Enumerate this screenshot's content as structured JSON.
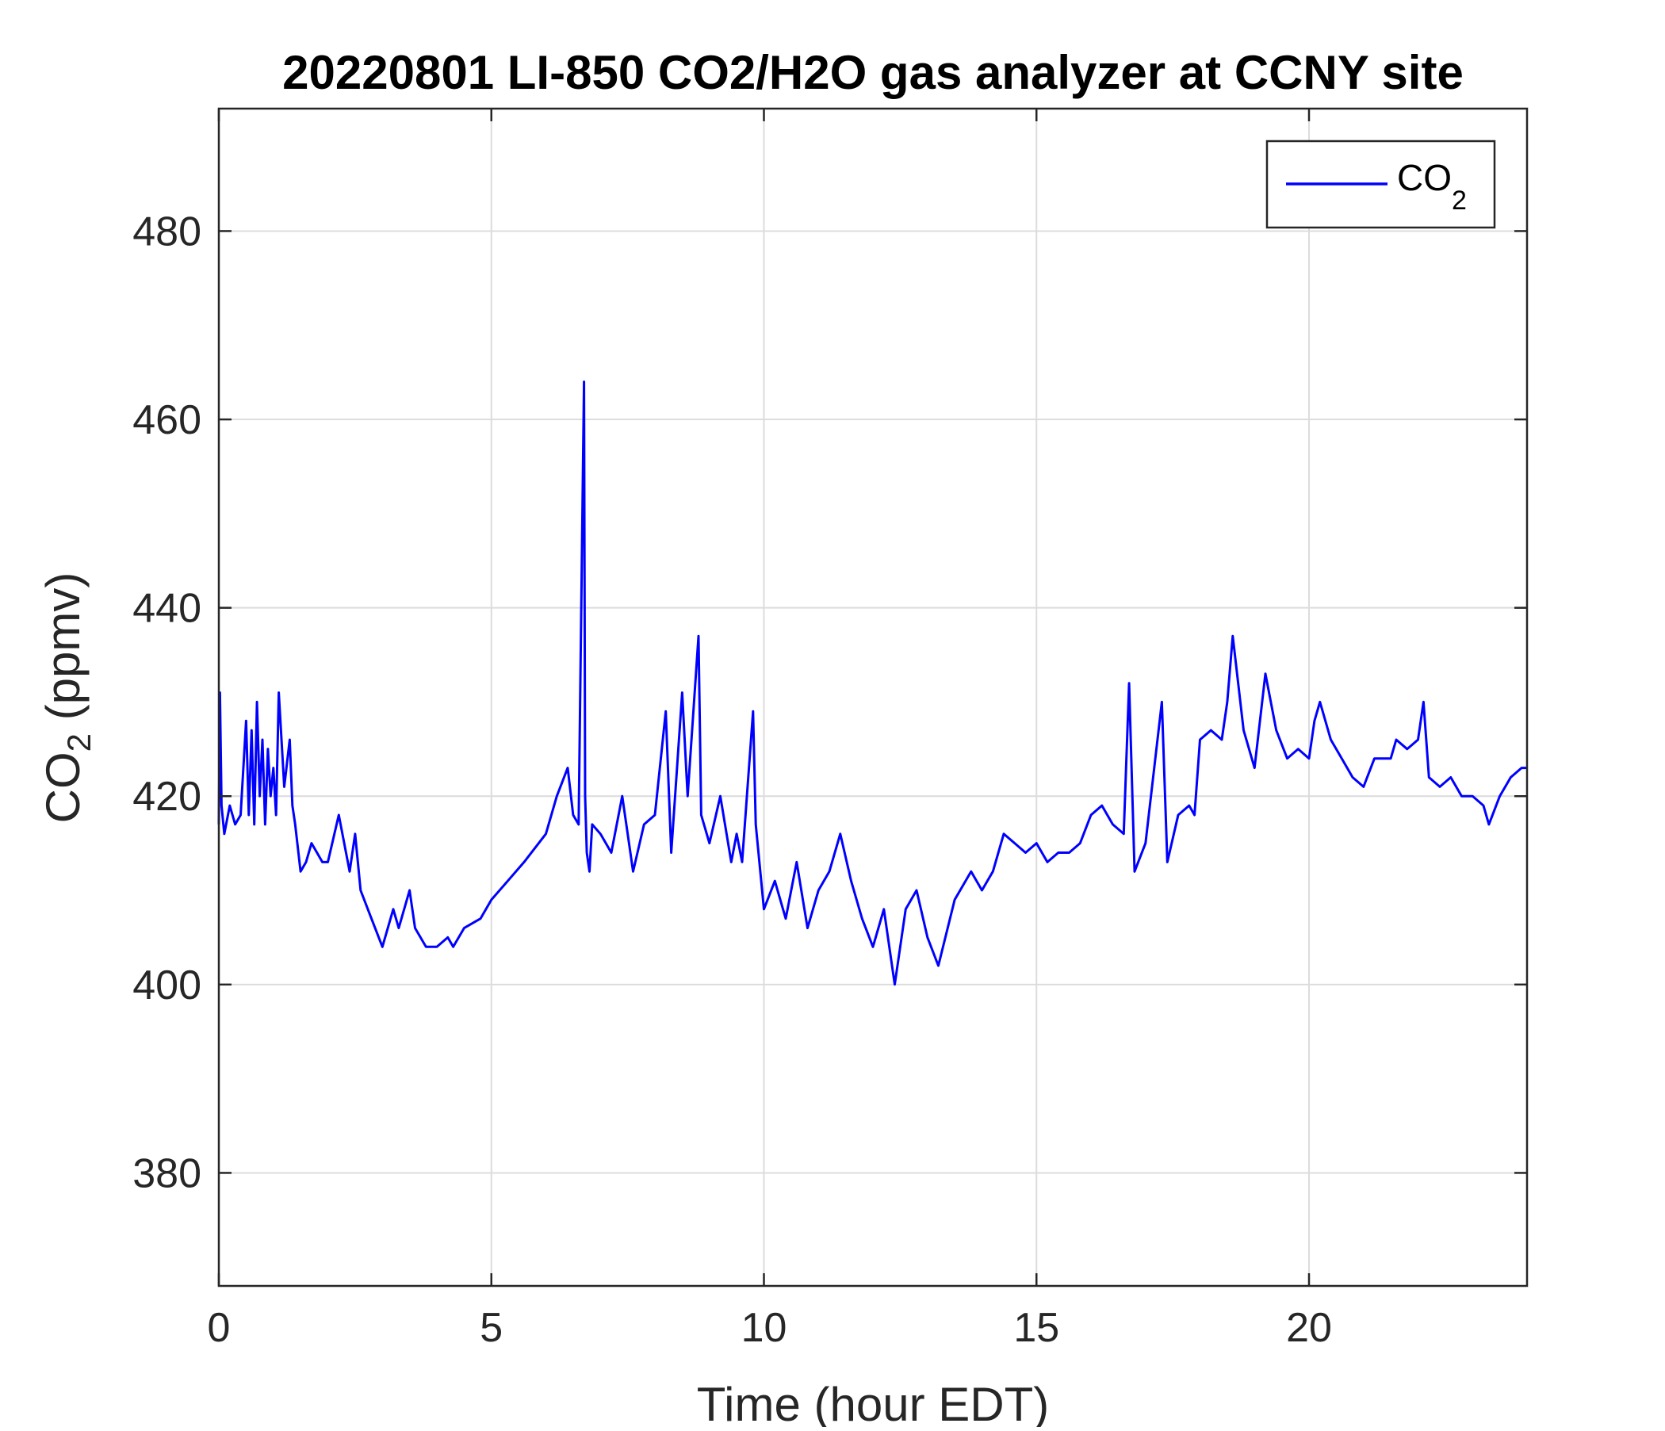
{
  "chart_data": {
    "type": "line",
    "title": "20220801 LI-850 CO2/H2O gas analyzer at CCNY site",
    "xlabel": "Time (hour EDT)",
    "ylabel": {
      "main": "CO",
      "sub": "2",
      "rest": " (ppmv)"
    },
    "xlim": [
      0,
      24
    ],
    "ylim": [
      368,
      493
    ],
    "xticks": [
      0,
      5,
      10,
      15,
      20
    ],
    "yticks": [
      380,
      400,
      420,
      440,
      460,
      480
    ],
    "grid": true,
    "legend": {
      "position": "top-right",
      "label_main": "CO",
      "label_sub": "2"
    },
    "series": [
      {
        "name": "CO2",
        "color": "#0000ff",
        "x": [
          0,
          0.02,
          0.05,
          0.1,
          0.2,
          0.3,
          0.4,
          0.5,
          0.55,
          0.6,
          0.65,
          0.7,
          0.75,
          0.8,
          0.85,
          0.9,
          0.95,
          1.0,
          1.05,
          1.1,
          1.2,
          1.3,
          1.35,
          1.4,
          1.5,
          1.6,
          1.7,
          1.8,
          1.9,
          2.0,
          2.2,
          2.4,
          2.5,
          2.6,
          2.8,
          3.0,
          3.2,
          3.3,
          3.5,
          3.6,
          3.8,
          4.0,
          4.2,
          4.3,
          4.5,
          4.8,
          5.0,
          5.3,
          5.6,
          6.0,
          6.2,
          6.4,
          6.5,
          6.6,
          6.7,
          6.72,
          6.75,
          6.8,
          6.85,
          7.0,
          7.2,
          7.4,
          7.6,
          7.8,
          8.0,
          8.2,
          8.3,
          8.5,
          8.6,
          8.8,
          8.85,
          9.0,
          9.2,
          9.4,
          9.5,
          9.6,
          9.8,
          9.85,
          10.0,
          10.2,
          10.4,
          10.6,
          10.8,
          11.0,
          11.2,
          11.4,
          11.6,
          11.8,
          12.0,
          12.2,
          12.4,
          12.6,
          12.8,
          13.0,
          13.2,
          13.5,
          13.8,
          14.0,
          14.2,
          14.4,
          14.6,
          14.8,
          15.0,
          15.2,
          15.4,
          15.6,
          15.8,
          16.0,
          16.2,
          16.4,
          16.6,
          16.7,
          16.8,
          17.0,
          17.3,
          17.4,
          17.6,
          17.8,
          17.9,
          18.0,
          18.2,
          18.4,
          18.5,
          18.6,
          18.8,
          19.0,
          19.2,
          19.4,
          19.6,
          19.8,
          20.0,
          20.1,
          20.2,
          20.4,
          20.6,
          20.8,
          21.0,
          21.2,
          21.5,
          21.6,
          21.8,
          22.0,
          22.1,
          22.2,
          22.4,
          22.6,
          22.8,
          23.0,
          23.2,
          23.3,
          23.5,
          23.7,
          23.9,
          24.0
        ],
        "y": [
          417,
          431,
          419,
          416,
          419,
          417,
          418,
          428,
          418,
          427,
          417,
          430,
          420,
          426,
          417,
          425,
          420,
          423,
          418,
          431,
          421,
          426,
          419,
          417,
          412,
          413,
          415,
          414,
          413,
          413,
          418,
          412,
          416,
          410,
          407,
          404,
          408,
          406,
          410,
          406,
          404,
          404,
          405,
          404,
          406,
          407,
          409,
          411,
          413,
          416,
          420,
          423,
          418,
          417,
          464,
          420,
          414,
          412,
          417,
          416,
          414,
          420,
          412,
          417,
          418,
          429,
          414,
          431,
          420,
          437,
          418,
          415,
          420,
          413,
          416,
          413,
          429,
          417,
          408,
          411,
          407,
          413,
          406,
          410,
          412,
          416,
          411,
          407,
          404,
          408,
          400,
          408,
          410,
          405,
          402,
          409,
          412,
          410,
          412,
          416,
          415,
          414,
          415,
          413,
          414,
          414,
          415,
          418,
          419,
          417,
          416,
          432,
          412,
          415,
          430,
          413,
          418,
          419,
          418,
          426,
          427,
          426,
          430,
          437,
          427,
          423,
          433,
          427,
          424,
          425,
          424,
          428,
          430,
          426,
          424,
          422,
          421,
          424,
          424,
          426,
          425,
          426,
          430,
          422,
          421,
          422,
          420,
          420,
          419,
          417,
          420,
          422,
          423,
          423
        ]
      }
    ]
  }
}
